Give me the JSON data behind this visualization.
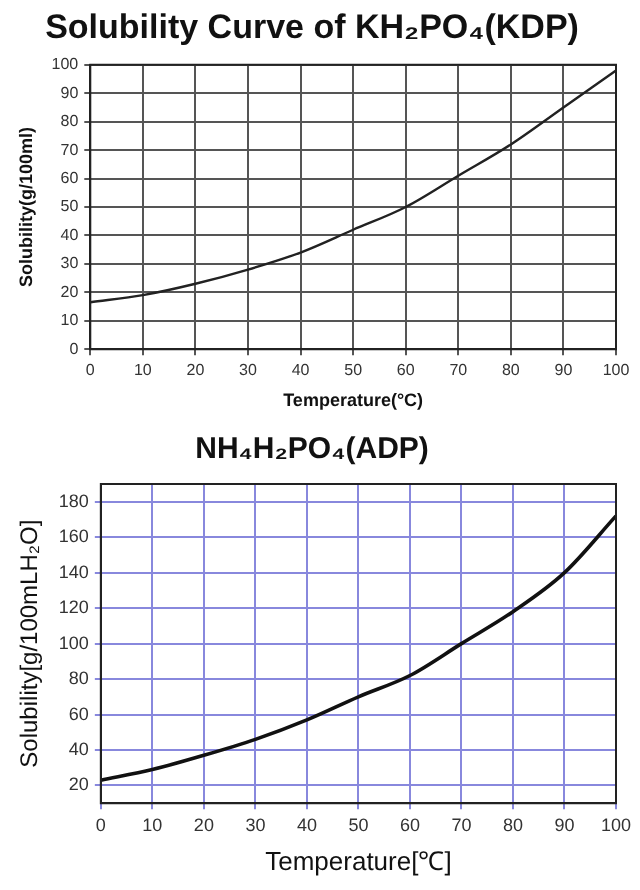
{
  "chart_data": [
    {
      "type": "line",
      "title": "Solubility Curve of KH₂PO₄(KDP)",
      "xlabel": "Temperature(°C)",
      "ylabel": "Solubility(g/100ml)",
      "x": [
        0,
        10,
        20,
        30,
        40,
        50,
        60,
        70,
        80,
        90,
        100
      ],
      "series": [
        {
          "color": "#222222",
          "values": [
            16.5,
            19,
            23,
            28,
            34,
            42,
            50,
            61,
            72,
            85,
            98
          ]
        }
      ],
      "xlim": [
        0,
        100
      ],
      "xticks": [
        0,
        10,
        20,
        30,
        40,
        50,
        60,
        70,
        80,
        90,
        100
      ],
      "ylim": [
        0,
        100
      ],
      "yticks": [
        0,
        10,
        20,
        30,
        40,
        50,
        60,
        70,
        80,
        90,
        100
      ],
      "grid": true,
      "legend": false,
      "marker": "none",
      "line_style": "solid"
    },
    {
      "type": "line",
      "title": "NH₄H₂PO₄(ADP)",
      "xlabel": "Temperature[℃]",
      "ylabel": "Solubility[g/100mLH₂O]",
      "x": [
        0,
        10,
        20,
        30,
        40,
        50,
        60,
        70,
        80,
        90,
        100
      ],
      "series": [
        {
          "color": "#111111",
          "values": [
            23,
            29,
            37,
            46,
            57,
            70,
            82,
            100,
            118,
            140,
            172
          ]
        }
      ],
      "xlim": [
        0,
        100
      ],
      "xticks": [
        0,
        10,
        20,
        30,
        40,
        50,
        60,
        70,
        80,
        90,
        100
      ],
      "ylim": [
        10,
        190
      ],
      "yticks": [
        20,
        40,
        60,
        80,
        100,
        120,
        140,
        160,
        180
      ],
      "grid": true,
      "legend": false,
      "marker": "none",
      "line_style": "solid"
    }
  ]
}
